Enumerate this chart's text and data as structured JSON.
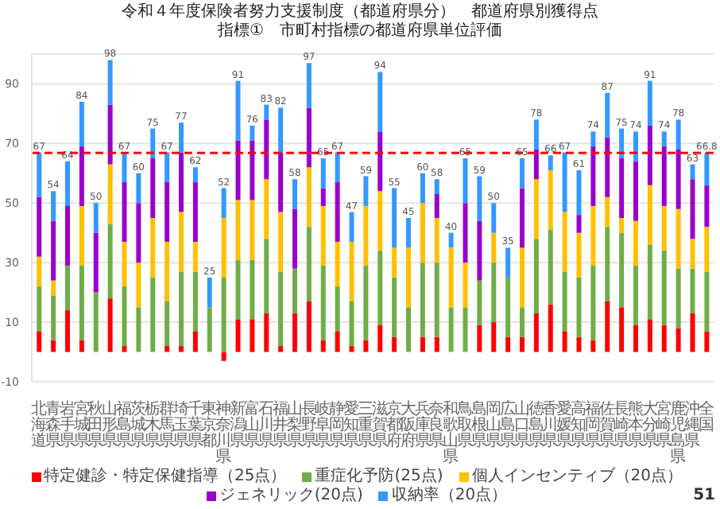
{
  "chart_data": {
    "type": "bar",
    "stacked": true,
    "title": "令和４年度保険者努力支援制度（都道府県分）　都道府県別獲得点",
    "subtitle": "指標①　市町村指標の都道府県単位評価",
    "categories": [
      "北海道",
      "青森県",
      "岩手県",
      "宮城県",
      "秋田県",
      "山形県",
      "福島県",
      "茨城県",
      "栃木県",
      "群馬県",
      "埼玉県",
      "千葉県",
      "東京都",
      "神奈川県",
      "新潟県",
      "富山県",
      "石川県",
      "福井県",
      "山梨県",
      "長野県",
      "岐阜県",
      "静岡県",
      "愛知県",
      "三重県",
      "滋賀県",
      "京都府",
      "大阪府",
      "兵庫県",
      "奈良県",
      "和歌山県",
      "鳥取県",
      "島根県",
      "岡山県",
      "広島県",
      "山口県",
      "徳島県",
      "香川県",
      "愛媛県",
      "高知県",
      "福岡県",
      "佐賀県",
      "長崎県",
      "熊本県",
      "大分県",
      "宮崎県",
      "鹿児島県",
      "沖縄県",
      "全国"
    ],
    "series": [
      {
        "name": "特定健診・特定保健指導（25点）",
        "color": "#ff0000",
        "values": [
          7,
          4,
          14,
          4,
          0,
          18,
          2,
          0,
          0,
          2,
          2,
          7,
          0,
          -3,
          11,
          11,
          13,
          2,
          13,
          17,
          4,
          7,
          2,
          4,
          9,
          5,
          0,
          5,
          5,
          0,
          0,
          9,
          10,
          5,
          5,
          13,
          16,
          7,
          5,
          4,
          17,
          15,
          9,
          11,
          9,
          8,
          13,
          6.9
        ]
      },
      {
        "name": "重症化予防(25点)",
        "color": "#70ad47",
        "values": [
          15,
          15,
          15,
          25,
          20,
          25,
          20,
          15,
          25,
          15,
          25,
          20,
          15,
          25,
          20,
          20,
          25,
          25,
          15,
          25,
          25,
          15,
          15,
          25,
          25,
          20,
          15,
          25,
          25,
          15,
          15,
          15,
          20,
          20,
          10,
          25,
          25,
          20,
          20,
          25,
          25,
          25,
          20,
          25,
          25,
          20,
          15,
          20
        ]
      },
      {
        "name": "個人インセンティブ（20点）",
        "color": "#ffc000",
        "values": [
          10,
          5,
          0,
          20,
          0,
          20,
          15,
          15,
          20,
          20,
          20,
          10,
          0,
          20,
          20,
          20,
          20,
          20,
          0,
          20,
          20,
          15,
          20,
          20,
          20,
          10,
          20,
          20,
          15,
          20,
          15,
          0,
          10,
          0,
          20,
          20,
          20,
          20,
          15,
          20,
          10,
          5,
          15,
          20,
          15,
          20,
          10,
          15.1
        ]
      },
      {
        "name": "ジェネリック(20点)",
        "color": "#9900cc",
        "values": [
          20,
          20,
          20,
          20,
          20,
          20,
          20,
          20,
          20,
          20,
          20,
          20,
          0,
          0,
          20,
          20,
          20,
          20,
          20,
          20,
          6,
          20,
          0,
          0,
          20,
          0,
          0,
          0,
          8,
          0,
          20,
          20,
          0,
          0,
          20,
          10,
          0,
          0,
          6,
          20,
          20,
          20,
          20,
          20,
          20,
          20,
          20,
          13.9
        ]
      },
      {
        "name": "収納率（20点）",
        "color": "#3399ff",
        "values": [
          15,
          10,
          15,
          15,
          10,
          15,
          10,
          10,
          10,
          10,
          10,
          5,
          10,
          10,
          20,
          5,
          5,
          15,
          10,
          15,
          10,
          10,
          10,
          10,
          20,
          20,
          10,
          10,
          5,
          5,
          15,
          15,
          10,
          10,
          10,
          10,
          5,
          20,
          15,
          5,
          15,
          10,
          10,
          15,
          5,
          10,
          5,
          10.9
        ]
      }
    ],
    "totals": [
      "67",
      "54",
      "64",
      "84",
      "50",
      "98",
      "67",
      "60",
      "75",
      "67",
      "77",
      "62",
      "25",
      "52",
      "91",
      "76",
      "83",
      "82",
      "58",
      "97",
      "65",
      "67",
      "47",
      "59",
      "94",
      "55",
      "45",
      "60",
      "58",
      "40",
      "65",
      "59",
      "50",
      "35",
      "65",
      "78",
      "66",
      "67",
      "61",
      "74",
      "87",
      "75",
      "74",
      "91",
      "74",
      "78",
      "63",
      "66.8"
    ],
    "ylim": [
      -10,
      100
    ],
    "yticks": [
      -10,
      10,
      30,
      50,
      70,
      90
    ],
    "grid": "y",
    "legend": "bottom",
    "ref_lines": [
      {
        "axis": "y",
        "value": 66.8,
        "color": "#ff0000",
        "line_style": "dashed"
      }
    ],
    "annotations": [
      "51"
    ]
  }
}
